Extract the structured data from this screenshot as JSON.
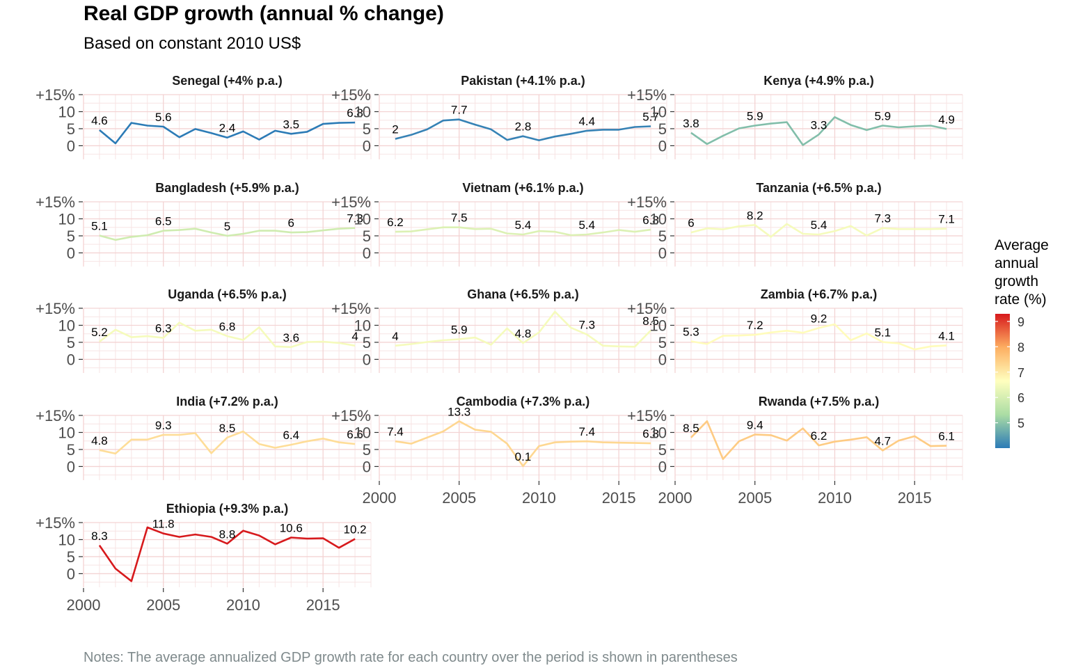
{
  "title": "Real GDP growth (annual % change)",
  "subtitle": "Based on constant 2010 US$",
  "note": "Notes: The average annualized GDP growth rate for each country over the period is shown in parentheses",
  "legend": {
    "title_lines": [
      "Average",
      "annual",
      "growth",
      "rate (%)"
    ],
    "ticks": [
      "9",
      "8",
      "7",
      "6",
      "5"
    ],
    "tick_values": [
      9,
      8,
      7,
      6,
      5
    ],
    "range": [
      4.0,
      9.3
    ],
    "colors": [
      "#2c7bb6",
      "#abdda4",
      "#ffffbf",
      "#fdae61",
      "#d7191c"
    ]
  },
  "chart_data": {
    "type": "line",
    "facet": "small-multiples",
    "x": [
      2001,
      2002,
      2003,
      2004,
      2005,
      2006,
      2007,
      2008,
      2009,
      2010,
      2011,
      2012,
      2013,
      2014,
      2015,
      2016,
      2017
    ],
    "xlim": [
      2000,
      2018
    ],
    "ylim": [
      -4,
      15
    ],
    "y_ticks": [
      "0",
      "5",
      "10",
      "+15%"
    ],
    "y_tick_values": [
      0,
      5,
      10,
      15
    ],
    "x_ticks": [
      "2000",
      "2005",
      "2010",
      "2015"
    ],
    "x_tick_values": [
      2000,
      2005,
      2010,
      2015
    ],
    "label_years": [
      2001,
      2005,
      2009,
      2013,
      2017
    ],
    "grid": true,
    "series": [
      {
        "name": "Senegal (+4% p.a.)",
        "avg": 4.0,
        "values": [
          4.6,
          0.7,
          6.7,
          5.9,
          5.6,
          2.5,
          4.9,
          3.7,
          2.4,
          4.2,
          1.8,
          4.4,
          3.5,
          4.1,
          6.4,
          6.7,
          6.8
        ],
        "labels": [
          "4.6",
          "5.6",
          "2.4",
          "3.5",
          "6.8"
        ]
      },
      {
        "name": "Pakistan (+4.1% p.a.)",
        "avg": 4.1,
        "values": [
          2.0,
          3.2,
          4.8,
          7.4,
          7.7,
          6.2,
          4.8,
          1.7,
          2.8,
          1.6,
          2.7,
          3.5,
          4.4,
          4.7,
          4.7,
          5.5,
          5.7
        ],
        "labels": [
          "2",
          "7.7",
          "2.8",
          "4.4",
          "5.7"
        ]
      },
      {
        "name": "Kenya (+4.9% p.a.)",
        "avg": 4.9,
        "values": [
          3.8,
          0.5,
          2.9,
          5.1,
          5.9,
          6.5,
          6.9,
          0.2,
          3.3,
          8.4,
          6.1,
          4.6,
          5.9,
          5.4,
          5.7,
          5.9,
          4.9
        ],
        "labels": [
          "3.8",
          "5.9",
          "3.3",
          "5.9",
          "4.9"
        ]
      },
      {
        "name": "Bangladesh (+5.9% p.a.)",
        "avg": 5.9,
        "values": [
          5.1,
          3.8,
          4.7,
          5.2,
          6.5,
          6.7,
          7.1,
          6.0,
          5.0,
          5.6,
          6.5,
          6.5,
          6.0,
          6.1,
          6.6,
          7.1,
          7.3
        ],
        "labels": [
          "5.1",
          "6.5",
          "5",
          "6",
          "7.3"
        ]
      },
      {
        "name": "Vietnam (+6.1% p.a.)",
        "avg": 6.1,
        "values": [
          6.2,
          6.3,
          6.9,
          7.5,
          7.5,
          7.0,
          7.1,
          5.7,
          5.4,
          6.4,
          6.2,
          5.2,
          5.4,
          6.0,
          6.7,
          6.2,
          6.8
        ],
        "labels": [
          "6.2",
          "7.5",
          "5.4",
          "5.4",
          "6.8"
        ]
      },
      {
        "name": "Tanzania (+6.5% p.a.)",
        "avg": 6.5,
        "values": [
          6.0,
          7.2,
          6.9,
          7.8,
          8.2,
          4.7,
          8.5,
          5.6,
          5.4,
          6.4,
          7.9,
          5.1,
          7.3,
          7.0,
          7.0,
          7.0,
          7.1
        ],
        "labels": [
          "6",
          "8.2",
          "5.4",
          "7.3",
          "7.1"
        ]
      },
      {
        "name": "Uganda (+6.5% p.a.)",
        "avg": 6.5,
        "values": [
          5.2,
          8.7,
          6.5,
          6.8,
          6.3,
          10.8,
          8.4,
          8.7,
          6.8,
          5.7,
          9.4,
          3.8,
          3.6,
          5.1,
          5.2,
          4.8,
          4.0
        ],
        "labels": [
          "5.2",
          "6.3",
          "6.8",
          "3.6",
          "4"
        ]
      },
      {
        "name": "Ghana (+6.5% p.a.)",
        "avg": 6.5,
        "values": [
          4.0,
          4.5,
          5.1,
          5.6,
          5.9,
          6.4,
          4.3,
          9.1,
          4.8,
          7.9,
          14.0,
          9.3,
          7.3,
          4.0,
          3.8,
          3.7,
          8.5
        ],
        "labels": [
          "4",
          "5.9",
          "4.8",
          "7.3",
          "8.5"
        ]
      },
      {
        "name": "Zambia (+6.7% p.a.)",
        "avg": 6.7,
        "values": [
          5.3,
          4.5,
          6.9,
          7.0,
          7.2,
          7.9,
          8.4,
          7.8,
          9.2,
          10.3,
          5.6,
          7.6,
          5.1,
          4.7,
          2.9,
          3.8,
          4.1
        ],
        "labels": [
          "5.3",
          "7.2",
          "9.2",
          "5.1",
          "4.1"
        ]
      },
      {
        "name": "India (+7.2% p.a.)",
        "avg": 7.2,
        "values": [
          4.8,
          3.8,
          7.9,
          7.9,
          9.3,
          9.3,
          9.8,
          3.9,
          8.5,
          10.3,
          6.6,
          5.5,
          6.4,
          7.4,
          8.2,
          7.1,
          6.6
        ],
        "labels": [
          "4.8",
          "9.3",
          "8.5",
          "6.4",
          "6.6"
        ]
      },
      {
        "name": "Cambodia (+7.3% p.a.)",
        "avg": 7.3,
        "values": [
          7.4,
          6.7,
          8.5,
          10.3,
          13.3,
          10.8,
          10.2,
          6.7,
          0.1,
          6.0,
          7.1,
          7.3,
          7.4,
          7.1,
          7.0,
          6.9,
          6.8
        ],
        "labels": [
          "7.4",
          "13.3",
          "0.1",
          "7.4",
          "6.8"
        ]
      },
      {
        "name": "Rwanda (+7.5% p.a.)",
        "avg": 7.5,
        "values": [
          8.5,
          13.3,
          2.2,
          7.4,
          9.4,
          9.2,
          7.6,
          11.2,
          6.2,
          7.3,
          7.9,
          8.6,
          4.7,
          7.6,
          8.9,
          6.0,
          6.1
        ],
        "labels": [
          "8.5",
          "9.4",
          "6.2",
          "4.7",
          "6.1"
        ]
      },
      {
        "name": "Ethiopia (+9.3% p.a.)",
        "avg": 9.3,
        "values": [
          8.3,
          1.5,
          -2.2,
          13.6,
          11.8,
          10.8,
          11.5,
          10.8,
          8.8,
          12.6,
          11.2,
          8.6,
          10.6,
          10.3,
          10.4,
          7.6,
          10.2
        ],
        "labels": [
          "8.3",
          "11.8",
          "8.8",
          "10.6",
          "10.2"
        ]
      }
    ]
  }
}
